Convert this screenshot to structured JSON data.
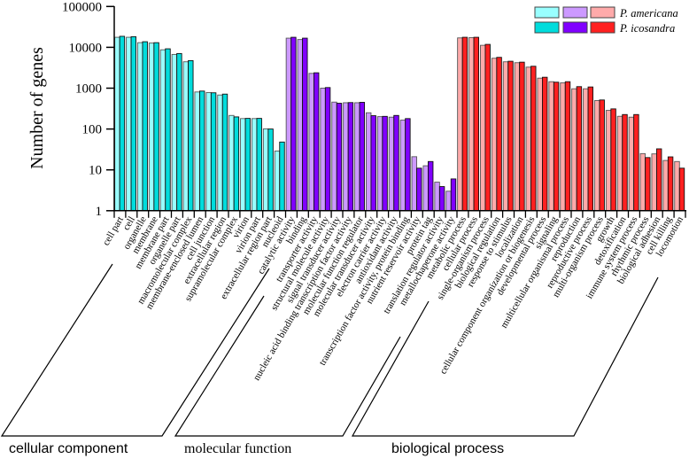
{
  "chart_data": {
    "type": "bar",
    "title": "",
    "ylabel": "Number of genes",
    "xlabel": "",
    "yscale": "log",
    "ylim": [
      1,
      100000
    ],
    "yticks": [
      "1",
      "10",
      "100",
      "1000",
      "10000",
      "100000"
    ],
    "grid": false,
    "legend": {
      "placement": "top-right",
      "entries": [
        "P. americana",
        "P. icosandra"
      ]
    },
    "colors": {
      "cellular component": [
        "#99ffff",
        "#00dcdc"
      ],
      "molecular function": [
        "#cc99ff",
        "#8000ff"
      ],
      "biological process": [
        "#ffaaaa",
        "#ff2020"
      ]
    },
    "groups": [
      {
        "name": "cellular component",
        "categories": [
          "cell part",
          "cell",
          "organelle",
          "membrane",
          "membrane part",
          "organelle part",
          "macromolecular complex",
          "membrane-enclosed lumen",
          "cell junction",
          "extracellular region",
          "supramolecular complex",
          "virion",
          "virion part",
          "extracellular region part",
          "nucleoid"
        ],
        "series": [
          {
            "name": "P. americana",
            "values": [
              17600,
              17600,
              13000,
              12700,
              8700,
              6700,
              4420,
              806,
              780,
              680,
              215,
              180,
              180,
              101,
              29
            ]
          },
          {
            "name": "P. icosandra",
            "values": [
              18600,
              18200,
              13700,
              13000,
              9200,
              7050,
              4720,
              848,
              770,
              715,
              198,
              182,
              182,
              100,
              48
            ]
          }
        ]
      },
      {
        "name": "molecular function",
        "categories": [
          "catalytic activity",
          "binding",
          "transporter activity",
          "structural molecule activity",
          "signal transducer activity",
          "nucleic acid binding transcription factor activity",
          "molecular function regulator",
          "molecular transducer activity",
          "electron carrier activity",
          "antioxidant activity",
          "transcription factor activity, protein binding",
          "nutrient reservoir activity",
          "protein tag",
          "translation regulator activity",
          "metallochaperone activity"
        ],
        "series": [
          {
            "name": "P. americana",
            "values": [
              16750,
              15500,
              2300,
              1000,
              456,
              440,
              440,
              250,
              201,
              195,
              165,
              21,
              12.6,
              5,
              3
            ]
          },
          {
            "name": "P. icosandra",
            "values": [
              17600,
              16750,
              2380,
              1035,
              427,
              444,
              450,
              212,
              204,
              215,
              180,
              11,
              16,
              3.9,
              6
            ]
          }
        ]
      },
      {
        "name": "biological process",
        "categories": [
          "metabolic process",
          "cellular process",
          "single-organism process",
          "biological regulation",
          "response to stimulus",
          "localization",
          "cellular component organization or biogenesis",
          "developmental process",
          "signaling",
          "multicellular organismal process",
          "reproduction",
          "reproductive process",
          "multi-organism process",
          "growth",
          "detoxification",
          "immune system process",
          "rhythmic process",
          "biological adhesion",
          "cell killing",
          "locomotion"
        ],
        "series": [
          {
            "name": "P. americana",
            "values": [
              17000,
              17300,
              11200,
              5400,
              4420,
              4200,
              3270,
              1760,
              1440,
              1350,
              966,
              966,
              497,
              286,
              205,
              195,
              25,
              24.6,
              17,
              16
            ]
          },
          {
            "name": "P. icosandra",
            "values": [
              17600,
              17600,
              11800,
              5680,
              4560,
              4330,
              3440,
              1850,
              1400,
              1440,
              1090,
              1070,
              514,
              311,
              226,
              226,
              20,
              32.7,
              20.8,
              11
            ]
          }
        ]
      }
    ]
  }
}
